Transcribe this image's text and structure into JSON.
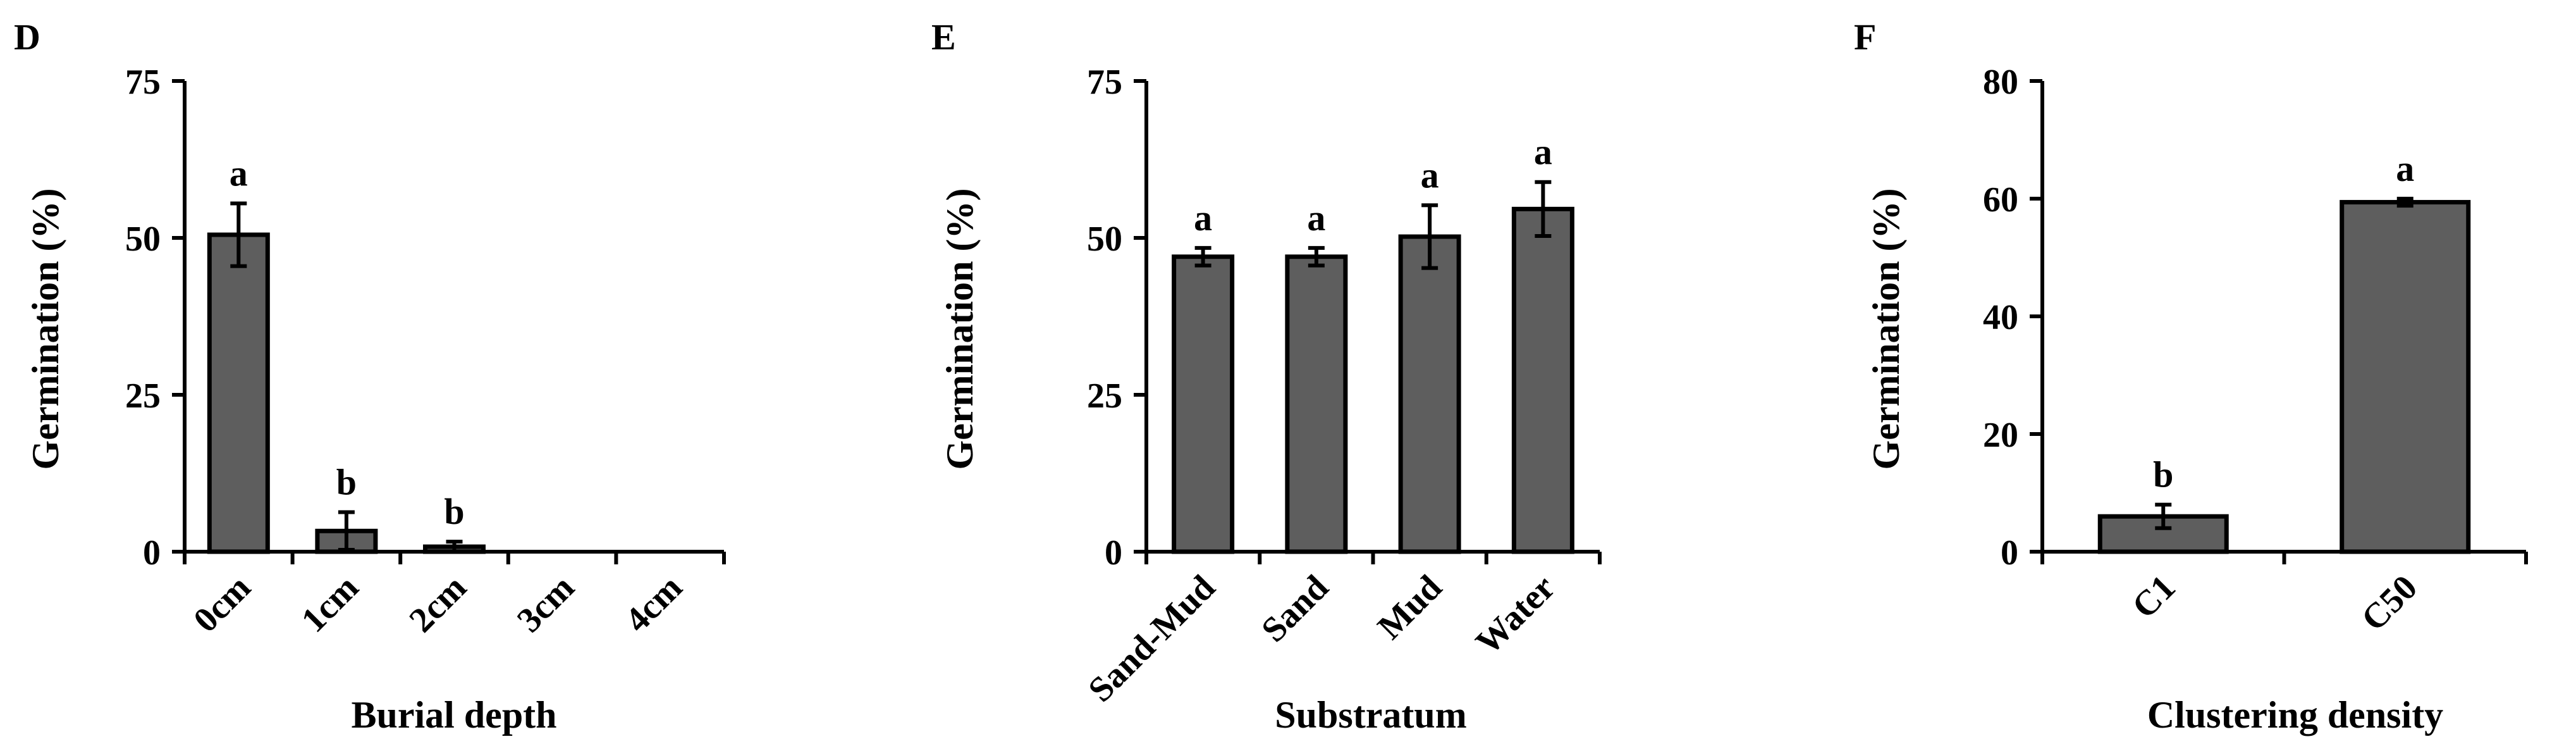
{
  "chart_data": [
    {
      "type": "bar",
      "panel_label": "D",
      "categories": [
        "0cm",
        "1cm",
        "2cm",
        "3cm",
        "4cm"
      ],
      "values": [
        50.5,
        3.3,
        0.8,
        0,
        0
      ],
      "errors": [
        5.0,
        3.0,
        0.8,
        0,
        0
      ],
      "significance": [
        "a",
        "b",
        "b",
        "",
        ""
      ],
      "xlabel": "Burial depth",
      "ylabel": "Germination (%)",
      "ylim": [
        0,
        75
      ],
      "yticks": [
        0,
        25,
        50,
        75
      ],
      "rotate_xticks": true,
      "color": "#5e5e5e"
    },
    {
      "type": "bar",
      "panel_label": "E",
      "categories": [
        "Sand-Mud",
        "Sand",
        "Mud",
        "Water"
      ],
      "values": [
        47,
        47,
        50.2,
        54.6
      ],
      "errors": [
        1.4,
        1.4,
        5.0,
        4.3
      ],
      "significance": [
        "a",
        "a",
        "a",
        "a"
      ],
      "xlabel": "Substratum",
      "ylabel": "Germination (%)",
      "ylim": [
        0,
        75
      ],
      "yticks": [
        0,
        25,
        50,
        75
      ],
      "rotate_xticks": true,
      "color": "#5e5e5e"
    },
    {
      "type": "bar",
      "panel_label": "F",
      "categories": [
        "C1",
        "C50"
      ],
      "values": [
        6,
        59.4
      ],
      "errors": [
        2.0,
        0.6
      ],
      "significance": [
        "b",
        "a"
      ],
      "xlabel": "Clustering density",
      "ylabel": "Germination (%)",
      "ylim": [
        0,
        80
      ],
      "yticks": [
        0,
        20,
        40,
        60,
        80
      ],
      "rotate_xticks": true,
      "color": "#5e5e5e"
    }
  ]
}
